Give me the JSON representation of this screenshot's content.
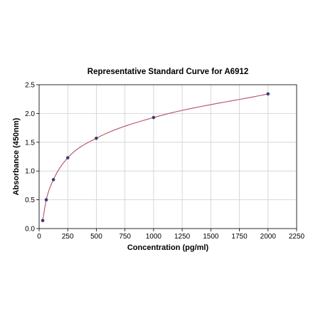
{
  "chart_data": {
    "type": "scatter",
    "title": "Representative Standard Curve for A6912",
    "xlabel": "Concentration (pg/ml)",
    "ylabel": "Absorbance (450nm)",
    "xlim": [
      0,
      2250
    ],
    "ylim": [
      0,
      2.5
    ],
    "xticks": [
      0,
      250,
      500,
      750,
      1000,
      1250,
      1500,
      1750,
      2000,
      2250
    ],
    "yticks": [
      0.0,
      0.5,
      1.0,
      1.5,
      2.0,
      2.5
    ],
    "xtick_labels": [
      "0",
      "250",
      "500",
      "750",
      "1000",
      "1250",
      "1500",
      "1750",
      "2000",
      "2250"
    ],
    "ytick_labels": [
      "0.0",
      "0.5",
      "1.0",
      "1.5",
      "2.0",
      "2.5"
    ],
    "grid": true,
    "point_color": "#3b3b7a",
    "curve_color": "#b5506b",
    "series": [
      {
        "x": [
          31.25,
          62.5,
          125,
          250,
          500,
          1000,
          2000
        ],
        "y": [
          0.14,
          0.5,
          0.85,
          1.23,
          1.57,
          1.93,
          2.34
        ]
      }
    ]
  }
}
